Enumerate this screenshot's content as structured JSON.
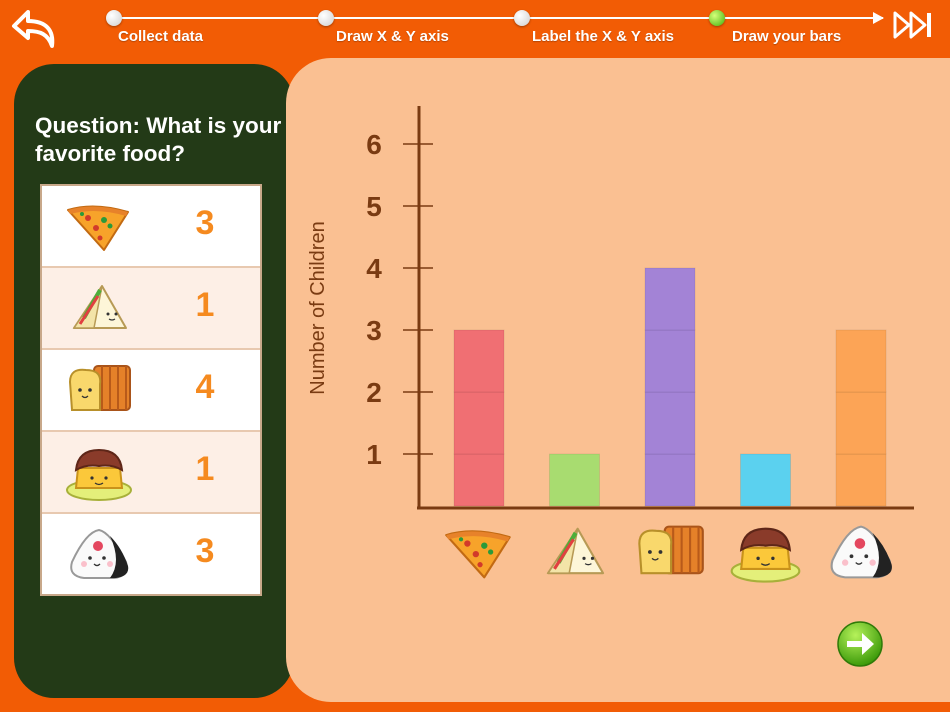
{
  "steps": [
    {
      "label": "Collect data"
    },
    {
      "label": "Draw X & Y axis"
    },
    {
      "label": "Label the X & Y axis"
    },
    {
      "label": "Draw your bars"
    }
  ],
  "active_step": 3,
  "question": "Question: What is your favorite food?",
  "tally": [
    {
      "food": "pizza-icon",
      "count": "3"
    },
    {
      "food": "sandwich-icon",
      "count": "1"
    },
    {
      "food": "bread-icon",
      "count": "4"
    },
    {
      "food": "pudding-icon",
      "count": "1"
    },
    {
      "food": "rice-ball-icon",
      "count": "3"
    }
  ],
  "chart_data": {
    "type": "bar",
    "ylabel": "Number of Children",
    "y_ticks": [
      "1",
      "2",
      "3",
      "4",
      "5",
      "6"
    ],
    "ylim": [
      0,
      6
    ],
    "categories": [
      "pizza-icon",
      "sandwich-icon",
      "bread-icon",
      "pudding-icon",
      "rice-ball-icon"
    ],
    "values": [
      3,
      1,
      4,
      1,
      3
    ],
    "colors": [
      "#f06f73",
      "#a8dc70",
      "#a383d6",
      "#5bd1ef",
      "#fca456"
    ]
  }
}
